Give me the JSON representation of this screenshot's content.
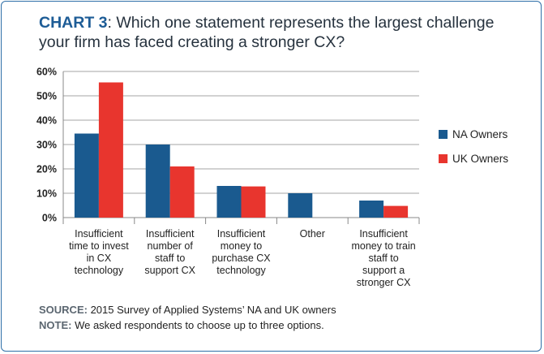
{
  "title": {
    "lead": "CHART 3",
    "rest": ": Which one statement represents the largest challenge your firm has faced creating a stronger CX?"
  },
  "colors": {
    "na": "#1a5a8f",
    "uk": "#e8352e",
    "border": "#2f6fa8",
    "axis": "#888888"
  },
  "chart_data": {
    "type": "bar",
    "categories": [
      "Insufficient time to invest in CX technology",
      "Insufficient number of staff to support CX",
      "Insufficient money to purchase CX technology",
      "Other",
      "Insufficient money to train staff to support a stronger CX"
    ],
    "category_lines": [
      [
        "Insufficient",
        "time to invest",
        "in CX",
        "technology"
      ],
      [
        "Insufficient",
        "number of",
        "staff to",
        "support CX"
      ],
      [
        "Insufficient",
        "money to",
        "purchase CX",
        "technology"
      ],
      [
        "Other"
      ],
      [
        "Insufficient",
        "money to train",
        "staff to",
        "support a",
        "stronger CX"
      ]
    ],
    "series": [
      {
        "name": "NA Owners",
        "values": [
          34.5,
          30,
          13,
          10,
          7
        ]
      },
      {
        "name": "UK Owners",
        "values": [
          55.5,
          21,
          12.8,
          0,
          4.8
        ]
      }
    ],
    "ylim": [
      0,
      60
    ],
    "yticks": [
      0,
      10,
      20,
      30,
      40,
      50,
      60
    ],
    "ytick_labels": [
      "0%",
      "10%",
      "20%",
      "30%",
      "40%",
      "50%",
      "60%"
    ],
    "legend_position": "right",
    "grid": true
  },
  "footer": {
    "source_label": "SOURCE:",
    "source_text": " 2015 Survey of Applied Systems’ NA and UK owners",
    "note_label": "NOTE:",
    "note_text": " We asked respondents to choose up to three options."
  }
}
